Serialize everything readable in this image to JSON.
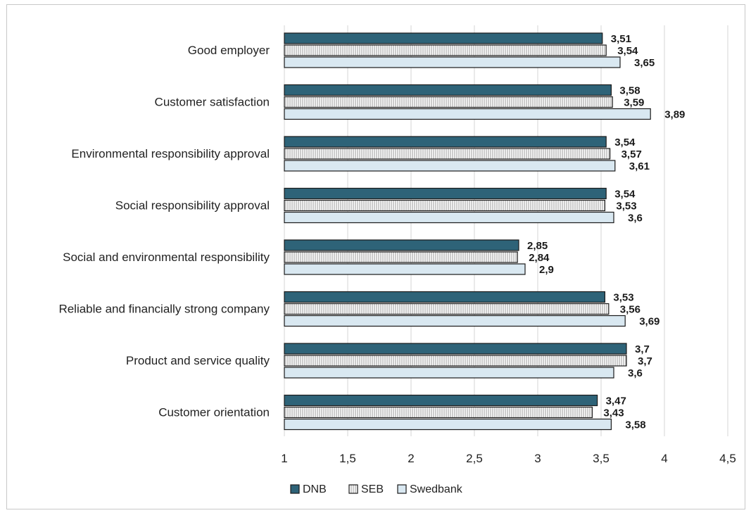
{
  "chart_data": {
    "type": "bar",
    "orientation": "horizontal",
    "categories": [
      "Good employer",
      "Customer satisfaction",
      "Environmental responsibility approval",
      "Social responsibility approval",
      "Social and environmental responsibility",
      "Reliable and financially strong company",
      "Product and service quality",
      "Customer orientation"
    ],
    "series": [
      {
        "name": "DNB",
        "color": "#2e6378",
        "pattern": "solid",
        "values": [
          3.51,
          3.58,
          3.54,
          3.54,
          2.85,
          3.53,
          3.7,
          3.47
        ],
        "labels": [
          "3,51",
          "3,58",
          "3,54",
          "3,54",
          "2,85",
          "3,53",
          "3,7",
          "3,47"
        ]
      },
      {
        "name": "SEB",
        "color": "#ffffff",
        "pattern": "vertical-hatch",
        "values": [
          3.54,
          3.59,
          3.57,
          3.53,
          2.84,
          3.56,
          3.7,
          3.43
        ],
        "labels": [
          "3,54",
          "3,59",
          "3,57",
          "3,53",
          "2,84",
          "3,56",
          "3,7",
          "3,43"
        ]
      },
      {
        "name": "Swedbank",
        "color": "#d9e8f1",
        "pattern": "solid",
        "values": [
          3.65,
          3.89,
          3.61,
          3.6,
          2.9,
          3.69,
          3.6,
          3.58
        ],
        "labels": [
          "3,65",
          "3,89",
          "3,61",
          "3,6",
          "2,9",
          "3,69",
          "3,6",
          "3,58"
        ]
      }
    ],
    "xlim": [
      1,
      4.5
    ],
    "xticks": [
      1,
      1.5,
      2,
      2.5,
      3,
      3.5,
      4,
      4.5
    ],
    "xtick_labels": [
      "1",
      "1,5",
      "2",
      "2,5",
      "3",
      "3,5",
      "4",
      "4,5"
    ],
    "grid": "vertical",
    "legend": "bottom-center"
  }
}
